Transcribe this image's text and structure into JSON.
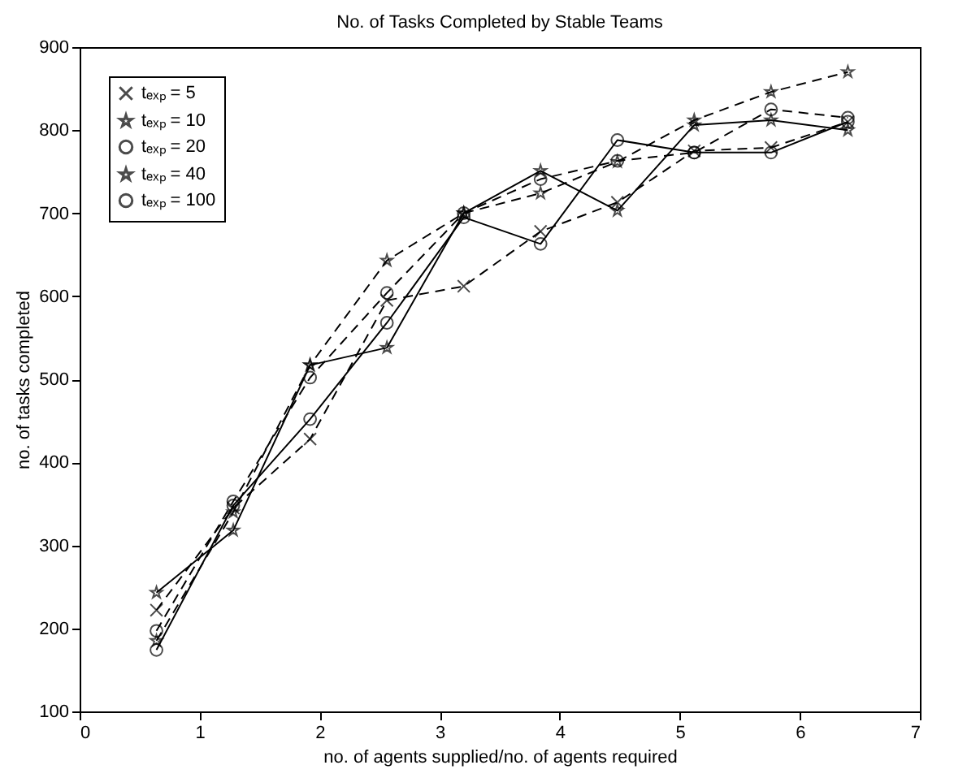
{
  "chart_data": {
    "type": "line",
    "title": "No. of Tasks Completed by Stable Teams",
    "xlabel": "no. of agents supplied/no. of agents required",
    "ylabel": "no. of tasks completed",
    "x": [
      0.64,
      1.28,
      1.92,
      2.56,
      3.2,
      3.84,
      4.48,
      5.12,
      5.76,
      6.4
    ],
    "series": [
      {
        "name": "tₑₓₚ = 5",
        "color": "#000000",
        "marker": "cross",
        "line_style": "dashed",
        "values": [
          222,
          345,
          428,
          595,
          612,
          678,
          713,
          775,
          779,
          810
        ]
      },
      {
        "name": "tₑₓₚ = 10",
        "color": "#000000",
        "marker": "star",
        "line_style": "dashed",
        "values": [
          185,
          340,
          517,
          643,
          700,
          724,
          762,
          812,
          846,
          870
        ]
      },
      {
        "name": "tₑₓₚ = 20",
        "color": "#000000",
        "marker": "circle",
        "line_style": "dashed",
        "values": [
          197,
          353,
          502,
          604,
          700,
          741,
          763,
          773,
          825,
          815
        ]
      },
      {
        "name": "tₑₓₚ = 40",
        "color": "#000000",
        "marker": "star",
        "line_style": "solid",
        "values": [
          243,
          318,
          517,
          538,
          700,
          751,
          703,
          806,
          812,
          800
        ]
      },
      {
        "name": "tₑₓₚ = 100",
        "color": "#000000",
        "marker": "circle",
        "line_style": "solid",
        "values": [
          174,
          348,
          452,
          568,
          695,
          663,
          788,
          773,
          773,
          810
        ]
      }
    ],
    "xlim": [
      0,
      7
    ],
    "xticks": [
      0,
      1,
      2,
      3,
      4,
      5,
      6,
      7
    ],
    "ylim": [
      100,
      900
    ],
    "yticks": [
      100,
      200,
      300,
      400,
      500,
      600,
      700,
      800,
      900
    ],
    "grid": false,
    "legend": "top left"
  }
}
